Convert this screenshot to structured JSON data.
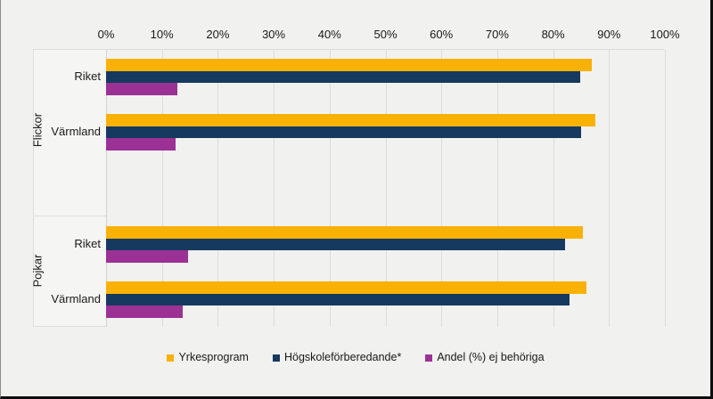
{
  "axis": {
    "tick_labels": [
      "0%",
      "10%",
      "20%",
      "30%",
      "40%",
      "50%",
      "60%",
      "70%",
      "80%",
      "90%",
      "100%"
    ],
    "min": 0,
    "max": 100
  },
  "groups": [
    {
      "label": "Flickor",
      "categories": [
        "Riket",
        "Värmland"
      ]
    },
    {
      "label": "Pojkar",
      "categories": [
        "Riket",
        "Värmland"
      ]
    }
  ],
  "legend": {
    "items": [
      {
        "label": "Yrkesprogram",
        "color": "#F9B104"
      },
      {
        "label": "Högskoleförberedande*",
        "color": "#16395F"
      },
      {
        "label": "Andel (%) ej behöriga",
        "color": "#9C3195"
      }
    ]
  },
  "colors": {
    "background": "#F1F1EF",
    "gridline": "#DEDDDC",
    "text": "#191919",
    "frame": "#0D0D0D"
  },
  "chart_data": {
    "type": "bar",
    "orientation": "horizontal",
    "title": "",
    "xlabel": "",
    "ylabel": "",
    "xlim": [
      0,
      100
    ],
    "x_tick_labels": [
      "0%",
      "10%",
      "20%",
      "30%",
      "40%",
      "50%",
      "60%",
      "70%",
      "80%",
      "90%",
      "100%"
    ],
    "grid": true,
    "legend_position": "bottom",
    "axis_position": "top",
    "group_labels": [
      "Flickor",
      "Flickor",
      "Pojkar",
      "Pojkar"
    ],
    "categories": [
      "Flickor – Riket",
      "Flickor – Värmland",
      "Pojkar – Riket",
      "Pojkar – Värmland"
    ],
    "series": [
      {
        "name": "Yrkesprogram",
        "color": "#F9B104",
        "values": [
          87.0,
          87.5,
          85.4,
          86.0
        ]
      },
      {
        "name": "Högskoleförberedande*",
        "color": "#16395F",
        "values": [
          84.8,
          85.0,
          82.2,
          83.0
        ]
      },
      {
        "name": "Andel (%) ej behöriga",
        "color": "#9C3195",
        "values": [
          12.8,
          12.4,
          14.6,
          13.7
        ]
      }
    ]
  }
}
